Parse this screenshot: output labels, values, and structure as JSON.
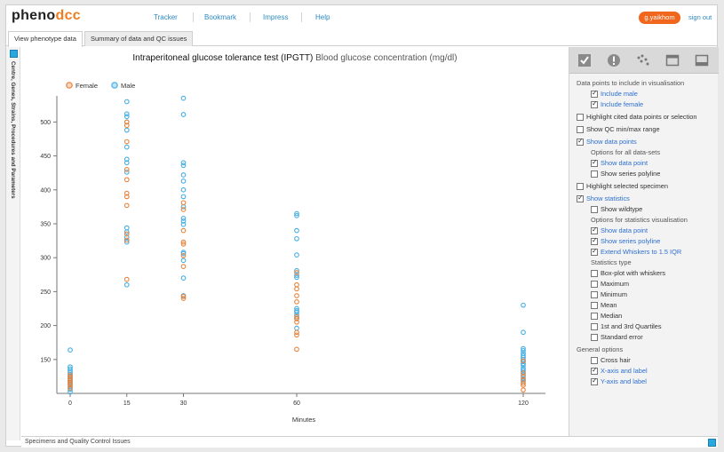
{
  "header": {
    "logo_part1": "pheno",
    "logo_part2": "dcc",
    "nav": [
      "Tracker",
      "Bookmark",
      "Impress",
      "Help"
    ],
    "user": "g.yaikhom",
    "signout": "sign out"
  },
  "tabs": [
    "View phenotype data",
    "Summary of data and QC issues"
  ],
  "side_panel": {
    "label": "Centre, Genes, Strains, Procedures and Parameters"
  },
  "footer": {
    "label": "Specimens and Quality Control Issues"
  },
  "colors": {
    "female": "#e8823a",
    "male": "#45aee2",
    "accent": "#f0661d",
    "link": "#2d8ac2"
  },
  "chart_data": {
    "type": "scatter",
    "title": "Intraperitoneal glucose tolerance test (IPGTT)",
    "subtitle": "Blood glucose concentration (mg/dl)",
    "xlabel": "Minutes",
    "ylabel": "",
    "x_ticks": [
      "0",
      "15",
      "30",
      "60",
      "120"
    ],
    "y_ticks": [
      150,
      200,
      250,
      300,
      350,
      400,
      450,
      500
    ],
    "ylim": [
      100,
      545
    ],
    "grid": false,
    "legend": "top-left",
    "series": [
      {
        "name": "Female",
        "color": "#e8823a",
        "points": [
          [
            0,
            108
          ],
          [
            0,
            112
          ],
          [
            0,
            115
          ],
          [
            0,
            119
          ],
          [
            0,
            122
          ],
          [
            0,
            124
          ],
          [
            0,
            127
          ],
          [
            15,
            268
          ],
          [
            15,
            326
          ],
          [
            15,
            335
          ],
          [
            15,
            377
          ],
          [
            15,
            390
          ],
          [
            15,
            395
          ],
          [
            15,
            415
          ],
          [
            15,
            430
          ],
          [
            15,
            471
          ],
          [
            15,
            495
          ],
          [
            15,
            500
          ],
          [
            30,
            240
          ],
          [
            30,
            243
          ],
          [
            30,
            287
          ],
          [
            30,
            303
          ],
          [
            30,
            320
          ],
          [
            30,
            323
          ],
          [
            30,
            340
          ],
          [
            30,
            371
          ],
          [
            30,
            381
          ],
          [
            60,
            165
          ],
          [
            60,
            186
          ],
          [
            60,
            190
          ],
          [
            60,
            205
          ],
          [
            60,
            210
          ],
          [
            60,
            213
          ],
          [
            60,
            235
          ],
          [
            60,
            244
          ],
          [
            60,
            254
          ],
          [
            60,
            260
          ],
          [
            60,
            278
          ],
          [
            120,
            105
          ],
          [
            120,
            112
          ],
          [
            120,
            115
          ],
          [
            120,
            120
          ],
          [
            120,
            125
          ],
          [
            120,
            130
          ],
          [
            120,
            148
          ]
        ]
      },
      {
        "name": "Male",
        "color": "#45aee2",
        "points": [
          [
            0,
            102
          ],
          [
            0,
            106
          ],
          [
            0,
            110
          ],
          [
            0,
            113
          ],
          [
            0,
            116
          ],
          [
            0,
            118
          ],
          [
            0,
            121
          ],
          [
            0,
            125
          ],
          [
            0,
            128
          ],
          [
            0,
            131
          ],
          [
            0,
            133
          ],
          [
            0,
            136
          ],
          [
            0,
            139
          ],
          [
            0,
            164
          ],
          [
            15,
            260
          ],
          [
            15,
            323
          ],
          [
            15,
            330
          ],
          [
            15,
            338
          ],
          [
            15,
            344
          ],
          [
            15,
            426
          ],
          [
            15,
            440
          ],
          [
            15,
            445
          ],
          [
            15,
            463
          ],
          [
            15,
            488
          ],
          [
            15,
            500
          ],
          [
            15,
            508
          ],
          [
            15,
            512
          ],
          [
            15,
            530
          ],
          [
            30,
            244
          ],
          [
            30,
            270
          ],
          [
            30,
            296
          ],
          [
            30,
            306
          ],
          [
            30,
            308
          ],
          [
            30,
            349
          ],
          [
            30,
            354
          ],
          [
            30,
            358
          ],
          [
            30,
            375
          ],
          [
            30,
            390
          ],
          [
            30,
            400
          ],
          [
            30,
            413
          ],
          [
            30,
            422
          ],
          [
            30,
            436
          ],
          [
            30,
            440
          ],
          [
            30,
            511
          ],
          [
            30,
            535
          ],
          [
            60,
            196
          ],
          [
            60,
            211
          ],
          [
            60,
            216
          ],
          [
            60,
            220
          ],
          [
            60,
            222
          ],
          [
            60,
            225
          ],
          [
            60,
            271
          ],
          [
            60,
            274
          ],
          [
            60,
            281
          ],
          [
            60,
            304
          ],
          [
            60,
            328
          ],
          [
            60,
            340
          ],
          [
            60,
            362
          ],
          [
            60,
            365
          ],
          [
            120,
            118
          ],
          [
            120,
            122
          ],
          [
            120,
            127
          ],
          [
            120,
            131
          ],
          [
            120,
            134
          ],
          [
            120,
            137
          ],
          [
            120,
            141
          ],
          [
            120,
            144
          ],
          [
            120,
            147
          ],
          [
            120,
            150
          ],
          [
            120,
            153
          ],
          [
            120,
            156
          ],
          [
            120,
            159
          ],
          [
            120,
            163
          ],
          [
            120,
            166
          ],
          [
            120,
            190
          ],
          [
            120,
            230
          ]
        ]
      }
    ]
  },
  "panel": {
    "icons": [
      "checkbox-icon",
      "alert-icon",
      "scatter-dots-icon",
      "window-icon",
      "panel-icon"
    ],
    "sections": [
      {
        "type": "header",
        "label": "Data points to include in visualisation"
      },
      {
        "type": "cb",
        "indent": 1,
        "checked": true,
        "label": "Include male"
      },
      {
        "type": "cb",
        "indent": 1,
        "checked": true,
        "label": "Include female"
      },
      {
        "type": "cb",
        "indent": 0,
        "checked": false,
        "label": "Highlight cited data points or selection"
      },
      {
        "type": "cb",
        "indent": 0,
        "checked": false,
        "label": "Show QC min/max range"
      },
      {
        "type": "cb",
        "indent": 0,
        "checked": true,
        "label": "Show data points"
      },
      {
        "type": "header",
        "indent": 1,
        "label": "Options for all data-sets"
      },
      {
        "type": "cb",
        "indent": 1,
        "checked": true,
        "label": "Show data point"
      },
      {
        "type": "cb",
        "indent": 1,
        "checked": false,
        "label": "Show series polyline"
      },
      {
        "type": "cb",
        "indent": 0,
        "checked": false,
        "label": "Highlight selected specimen"
      },
      {
        "type": "cb",
        "indent": 0,
        "checked": true,
        "label": "Show statistics"
      },
      {
        "type": "cb",
        "indent": 1,
        "checked": false,
        "label": "Show wildtype"
      },
      {
        "type": "header",
        "indent": 1,
        "label": "Options for statistics visualisation"
      },
      {
        "type": "cb",
        "indent": 1,
        "checked": true,
        "label": "Show data point"
      },
      {
        "type": "cb",
        "indent": 1,
        "checked": true,
        "label": "Show series polyline"
      },
      {
        "type": "cb",
        "indent": 1,
        "checked": true,
        "label": "Extend Whiskers to 1.5 IQR"
      },
      {
        "type": "header",
        "indent": 1,
        "label": "Statistics type"
      },
      {
        "type": "cb",
        "indent": 1,
        "checked": false,
        "label": "Box-plot with whiskers"
      },
      {
        "type": "cb",
        "indent": 1,
        "checked": false,
        "label": "Maximum"
      },
      {
        "type": "cb",
        "indent": 1,
        "checked": false,
        "label": "Minimum"
      },
      {
        "type": "cb",
        "indent": 1,
        "checked": false,
        "label": "Mean"
      },
      {
        "type": "cb",
        "indent": 1,
        "checked": false,
        "label": "Median"
      },
      {
        "type": "cb",
        "indent": 1,
        "checked": false,
        "label": "1st and 3rd Quartiles"
      },
      {
        "type": "cb",
        "indent": 1,
        "checked": false,
        "label": "Standard error"
      },
      {
        "type": "header",
        "indent": 0,
        "label": "General options"
      },
      {
        "type": "cb",
        "indent": 1,
        "checked": false,
        "label": "Cross hair"
      },
      {
        "type": "cb",
        "indent": 1,
        "checked": true,
        "label": "X-axis and label"
      },
      {
        "type": "cb",
        "indent": 1,
        "checked": true,
        "label": "Y-axis and label"
      }
    ]
  }
}
